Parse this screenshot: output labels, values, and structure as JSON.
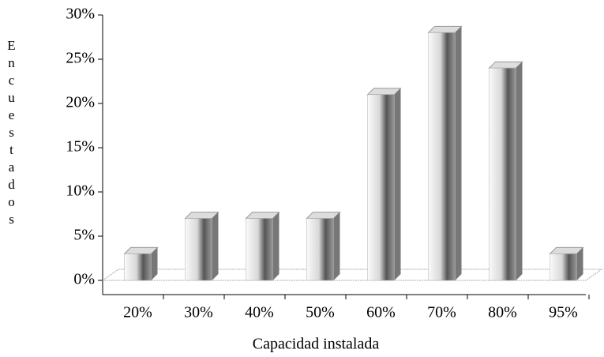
{
  "chart_data": {
    "type": "bar3d",
    "x_label": "Capacidad instalada",
    "y_label": "Encuestados",
    "categories": [
      "20%",
      "30%",
      "40%",
      "50%",
      "60%",
      "70%",
      "80%",
      "95%"
    ],
    "values": [
      3,
      7,
      7,
      7,
      21,
      28,
      24,
      3
    ],
    "ylim": [
      0,
      30
    ],
    "yticks": [
      {
        "value": 0,
        "label": "0%"
      },
      {
        "value": 5,
        "label": "5%"
      },
      {
        "value": 10,
        "label": "10%"
      },
      {
        "value": 15,
        "label": "15%"
      },
      {
        "value": 20,
        "label": "20%"
      },
      {
        "value": 25,
        "label": "25%"
      },
      {
        "value": 30,
        "label": "30%"
      }
    ],
    "color": "#b0b0b0"
  }
}
